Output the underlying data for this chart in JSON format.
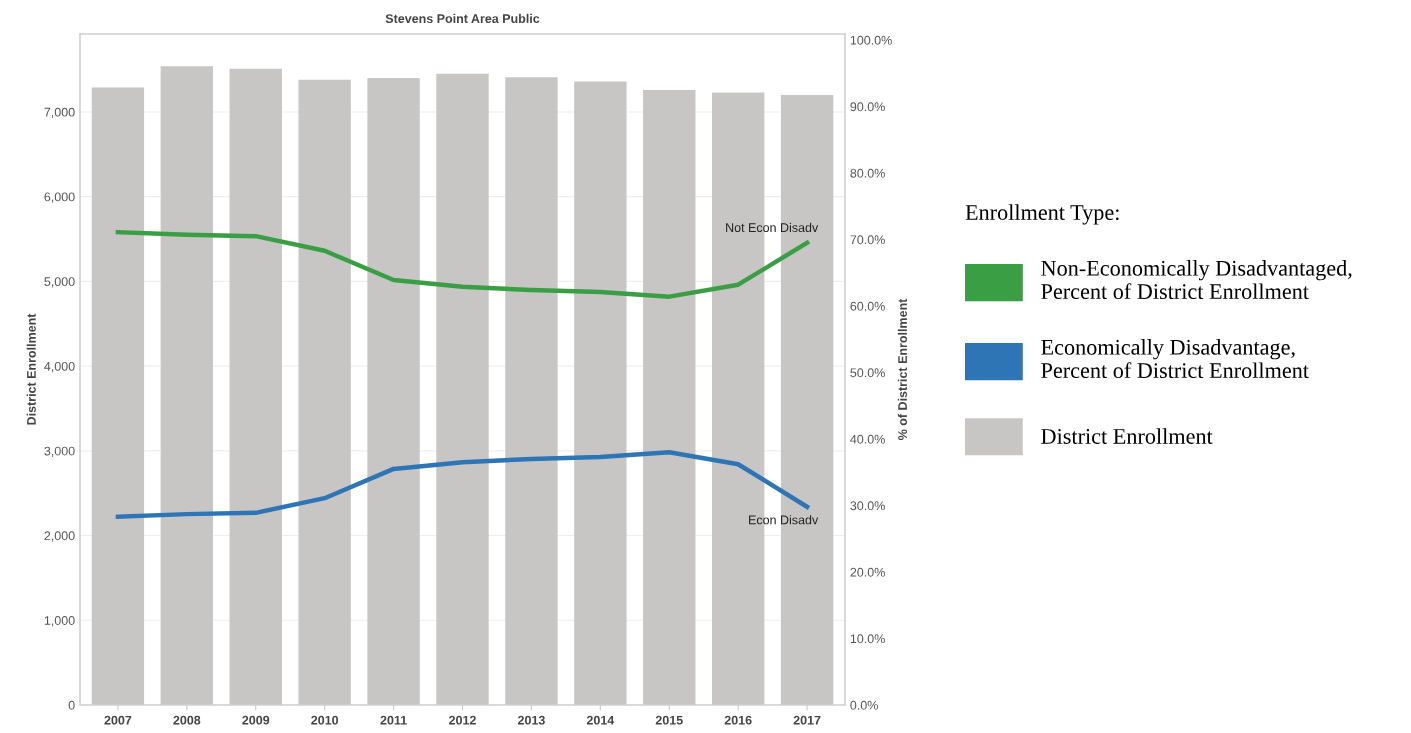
{
  "chart_data": {
    "type": "bar",
    "title": "Stevens Point Area Public",
    "ylabel": "District Enrollment",
    "y2label": "% of District Enrollment",
    "legend_title": "Enrollment Type:",
    "categories": [
      "2007",
      "2008",
      "2009",
      "2010",
      "2011",
      "2012",
      "2013",
      "2014",
      "2015",
      "2016",
      "2017"
    ],
    "series": [
      {
        "name": "District Enrollment",
        "color": "#c8c6c4",
        "values": [
          7290,
          7540,
          7510,
          7380,
          7400,
          7450,
          7410,
          7360,
          7260,
          7230,
          7200
        ]
      },
      {
        "name": "Non-Economically Disadvantaged, Percent of District Enrollment",
        "type": "line",
        "axis": "y2",
        "color": "#3a9e45",
        "values": [
          71.1,
          70.7,
          70.5,
          68.3,
          63.9,
          62.9,
          62.4,
          62.1,
          61.4,
          63.2,
          69.5
        ]
      },
      {
        "name": "Economically Disadvantage, Percent of District Enrollment",
        "type": "line",
        "axis": "y2",
        "color": "#2e75b6",
        "values": [
          28.3,
          28.7,
          28.9,
          31.1,
          35.5,
          36.5,
          37.0,
          37.3,
          38.0,
          36.2,
          29.8
        ]
      }
    ],
    "annotations": [
      "Not Econ Disadv",
      "Econ Disadv"
    ],
    "ylim": [
      0,
      7920
    ],
    "yticks": [
      0,
      {
        "value": 1000,
        "label": "1,000"
      },
      {
        "value": 2000,
        "label": "2,000"
      },
      {
        "value": 3000,
        "label": "3,000"
      },
      {
        "value": 4000,
        "label": "4,000"
      },
      {
        "value": 5000,
        "label": "5,000"
      },
      {
        "value": 6000,
        "label": "6,000"
      },
      {
        "value": 7000,
        "label": "7,000"
      }
    ],
    "y2lim": [
      0,
      100.9
    ],
    "y2ticks": [
      {
        "value": 0,
        "label": "0.0%"
      },
      {
        "value": 10,
        "label": "10.0%"
      },
      {
        "value": 20,
        "label": "20.0%"
      },
      {
        "value": 30,
        "label": "30.0%"
      },
      {
        "value": 40,
        "label": "40.0%"
      },
      {
        "value": 50,
        "label": "50.0%"
      },
      {
        "value": 60,
        "label": "60.0%"
      },
      {
        "value": 70,
        "label": "70.0%"
      },
      {
        "value": 80,
        "label": "80.0%"
      },
      {
        "value": 90,
        "label": "90.0%"
      },
      {
        "value": 100,
        "label": "100.0%"
      }
    ],
    "grid": "y",
    "legend": "right",
    "marker": "none",
    "line_style": "solid"
  }
}
